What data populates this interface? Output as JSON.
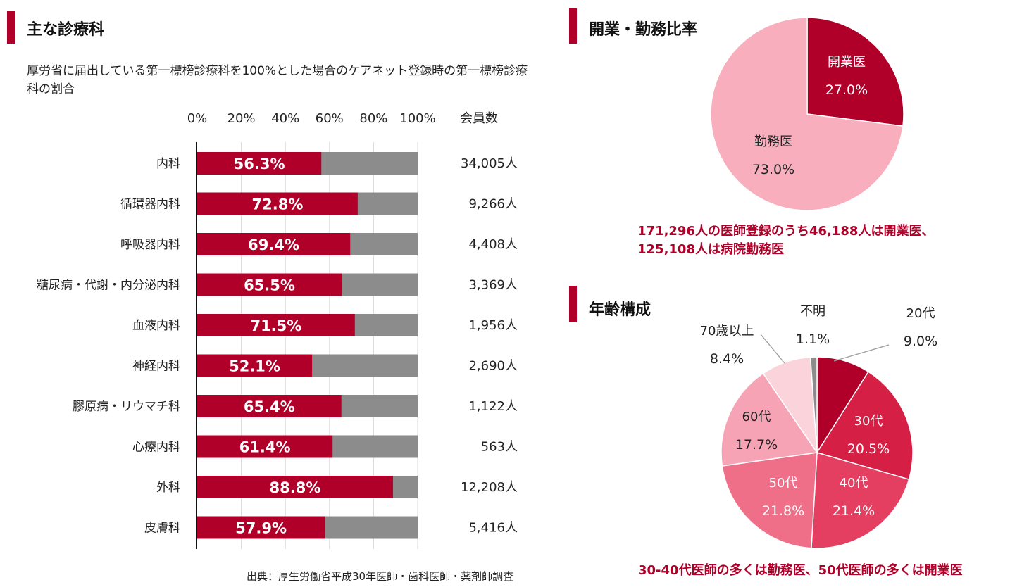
{
  "sections": {
    "departments_title": "主な診療科",
    "ratio_title": "開業・勤務比率",
    "age_title": "年齢構成"
  },
  "bar_description": "厚労省に届出している第一標榜診療科を100%とした場合のケアネット登録時の第一標榜診療科の割合",
  "members_header": "会員数",
  "source_note": "出典：厚生労働省平成30年医師・歯科医師・薬剤師調査",
  "ratio_summary": [
    "171,296人の医師登録のうち46,188人は開業医、",
    "125,108人は病院勤務医"
  ],
  "age_summary": "30-40代医師の多くは勤務医、50代医師の多くは開業医",
  "colors": {
    "accent": "#b0002a",
    "bar_rest": "#8c8c8c",
    "ratio_kaigyo": "#b0002a",
    "ratio_kinmu": "#f8aebd",
    "age": [
      "#b0002a",
      "#d61f45",
      "#e43e61",
      "#ef6f89",
      "#f5a3b5",
      "#fad3db",
      "#8c8c8c"
    ]
  },
  "chart_data": [
    {
      "type": "bar",
      "orientation": "horizontal",
      "stacked": true,
      "xlim": [
        0,
        100
      ],
      "xticks": [
        "0%",
        "20%",
        "40%",
        "60%",
        "80%",
        "100%"
      ],
      "categories": [
        "内科",
        "循環器内科",
        "呼吸器内科",
        "糖尿病・代謝・内分泌内科",
        "血液内科",
        "神経内科",
        "膠原病・リウマチ科",
        "心療内科",
        "外科",
        "皮膚科"
      ],
      "values": [
        56.3,
        72.8,
        69.4,
        65.5,
        71.5,
        52.1,
        65.4,
        61.4,
        88.8,
        57.9
      ],
      "value_labels": [
        "56.3%",
        "72.8%",
        "69.4%",
        "65.5%",
        "71.5%",
        "52.1%",
        "65.4%",
        "61.4%",
        "88.8%",
        "57.9%"
      ],
      "members": [
        "34,005人",
        "9,266人",
        "4,408人",
        "3,369人",
        "1,956人",
        "2,690人",
        "1,122人",
        "563人",
        "12,208人",
        "5,416人"
      ]
    },
    {
      "type": "pie",
      "slices": [
        {
          "name": "開業医",
          "value": 27.0,
          "label": "27.0%"
        },
        {
          "name": "勤務医",
          "value": 73.0,
          "label": "73.0%"
        }
      ]
    },
    {
      "type": "pie",
      "slices": [
        {
          "name": "20代",
          "value": 9.0,
          "label": "9.0%"
        },
        {
          "name": "30代",
          "value": 20.5,
          "label": "20.5%"
        },
        {
          "name": "40代",
          "value": 21.4,
          "label": "21.4%"
        },
        {
          "name": "50代",
          "value": 21.8,
          "label": "21.8%"
        },
        {
          "name": "60代",
          "value": 17.7,
          "label": "17.7%"
        },
        {
          "name": "70歳以上",
          "value": 8.4,
          "label": "8.4%"
        },
        {
          "name": "不明",
          "value": 1.1,
          "label": "1.1%"
        }
      ]
    }
  ]
}
